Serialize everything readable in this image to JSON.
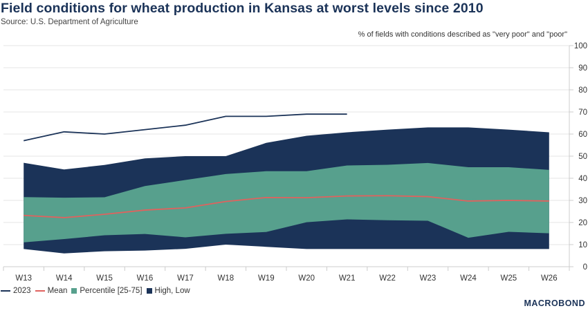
{
  "header": {
    "title": "Field conditions for wheat production in Kansas at worst levels since 2010",
    "source": "Source: U.S. Department of Agriculture",
    "unit_note": "% of fields with conditions described as \"very poor\" and \"poor\""
  },
  "logo": {
    "text": "MACROBOND"
  },
  "colors": {
    "line_2023": "#1b3358",
    "mean": "#e0625e",
    "percentile": "#57a08d",
    "high_low": "#1b3358",
    "grid": "#e4e4e4",
    "axis": "#cccccc"
  },
  "legend": {
    "items": [
      {
        "label": "2023",
        "type": "line",
        "color": "#1b3358"
      },
      {
        "label": "Mean",
        "type": "line",
        "color": "#e0625e"
      },
      {
        "label": "Percentile [25-75]",
        "type": "box",
        "color": "#57a08d"
      },
      {
        "label": "High, Low",
        "type": "box",
        "color": "#1b3358"
      }
    ]
  },
  "chart_data": {
    "type": "area",
    "title": "Field conditions for wheat production in Kansas at worst levels since 2010",
    "subtitle": "Source: U.S. Department of Agriculture",
    "xlabel": "",
    "ylabel": "% of fields with conditions described as \"very poor\" and \"poor\"",
    "ylim": [
      0,
      100
    ],
    "yticks": [
      0,
      10,
      20,
      30,
      40,
      50,
      60,
      70,
      80,
      90,
      100
    ],
    "y_axis_side": "right",
    "grid": true,
    "legend_position": "bottom-left",
    "categories": [
      "W13",
      "W14",
      "W15",
      "W16",
      "W17",
      "W18",
      "W19",
      "W20",
      "W21",
      "W22",
      "W23",
      "W24",
      "W25",
      "W26"
    ],
    "series": [
      {
        "name": "2023",
        "kind": "line",
        "values": [
          57,
          61,
          60,
          62,
          64,
          68,
          68,
          69,
          69,
          null,
          null,
          null,
          null,
          null
        ]
      },
      {
        "name": "Mean",
        "kind": "line",
        "values": [
          23.2,
          22.2,
          23.7,
          25.6,
          26.6,
          29.5,
          31.3,
          31.2,
          32.0,
          32.1,
          31.7,
          29.7,
          30.0,
          29.7
        ]
      },
      {
        "name": "Percentile 25",
        "kind": "band-lower",
        "values": [
          11,
          12.5,
          14.2,
          14.8,
          13.3,
          14.9,
          15.7,
          20.1,
          21.4,
          21.0,
          20.8,
          13.1,
          15.8,
          15.1
        ]
      },
      {
        "name": "Percentile 75",
        "kind": "band-upper",
        "values": [
          31.5,
          31.2,
          31.4,
          36.5,
          39.2,
          41.9,
          43.2,
          43.2,
          45.8,
          46.1,
          46.9,
          45.0,
          45.0,
          43.8
        ]
      },
      {
        "name": "Low",
        "kind": "band-lower",
        "values": [
          8,
          6,
          7,
          7.3,
          8.1,
          10,
          9,
          8,
          8,
          8,
          8,
          8,
          8,
          8
        ]
      },
      {
        "name": "High",
        "kind": "band-upper",
        "values": [
          47,
          44,
          46,
          49,
          50,
          50,
          56,
          59.2,
          60.8,
          62,
          63,
          63,
          62,
          60.8
        ]
      }
    ]
  }
}
